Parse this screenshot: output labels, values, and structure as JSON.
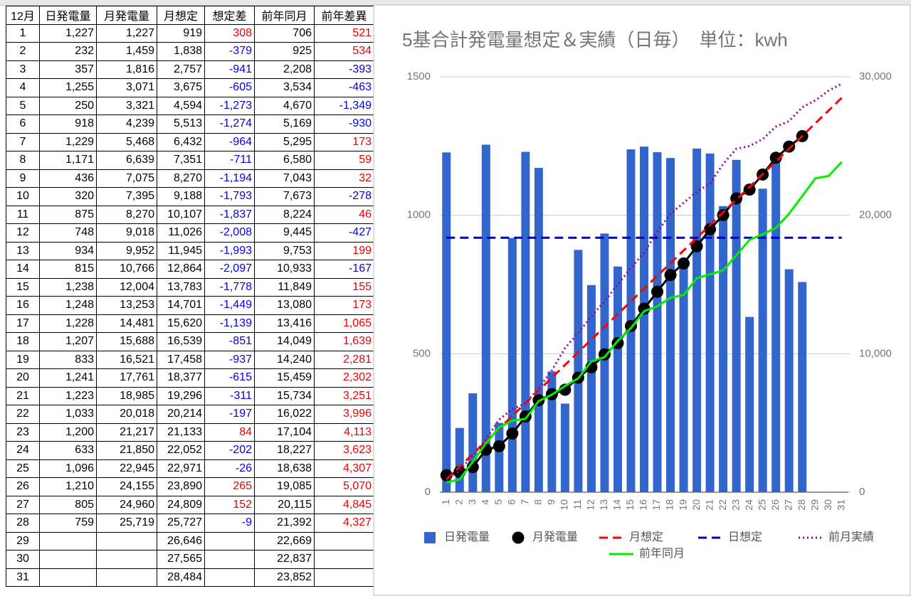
{
  "table": {
    "header": [
      "12月",
      "日発電量",
      "月発電量",
      "月想定",
      "想定差",
      "前年同月",
      "前年差異"
    ],
    "rows": [
      [
        "1",
        "1,227",
        "1,227",
        "919",
        "308",
        "706",
        "521"
      ],
      [
        "2",
        "232",
        "1,459",
        "1,838",
        "-379",
        "925",
        "534"
      ],
      [
        "3",
        "357",
        "1,816",
        "2,757",
        "-941",
        "2,208",
        "-393"
      ],
      [
        "4",
        "1,255",
        "3,071",
        "3,675",
        "-605",
        "3,534",
        "-463"
      ],
      [
        "5",
        "250",
        "3,321",
        "4,594",
        "-1,273",
        "4,670",
        "-1,349"
      ],
      [
        "6",
        "918",
        "4,239",
        "5,513",
        "-1,274",
        "5,169",
        "-930"
      ],
      [
        "7",
        "1,229",
        "5,468",
        "6,432",
        "-964",
        "5,295",
        "173"
      ],
      [
        "8",
        "1,171",
        "6,639",
        "7,351",
        "-711",
        "6,580",
        "59"
      ],
      [
        "9",
        "436",
        "7,075",
        "8,270",
        "-1,194",
        "7,043",
        "32"
      ],
      [
        "10",
        "320",
        "7,395",
        "9,188",
        "-1,793",
        "7,673",
        "-278"
      ],
      [
        "11",
        "875",
        "8,270",
        "10,107",
        "-1,837",
        "8,224",
        "46"
      ],
      [
        "12",
        "748",
        "9,018",
        "11,026",
        "-2,008",
        "9,445",
        "-427"
      ],
      [
        "13",
        "934",
        "9,952",
        "11,945",
        "-1,993",
        "9,753",
        "199"
      ],
      [
        "14",
        "815",
        "10,766",
        "12,864",
        "-2,097",
        "10,933",
        "-167"
      ],
      [
        "15",
        "1,238",
        "12,004",
        "13,783",
        "-1,778",
        "11,849",
        "155"
      ],
      [
        "16",
        "1,248",
        "13,253",
        "14,701",
        "-1,449",
        "13,080",
        "173"
      ],
      [
        "17",
        "1,228",
        "14,481",
        "15,620",
        "-1,139",
        "13,416",
        "1,065"
      ],
      [
        "18",
        "1,207",
        "15,688",
        "16,539",
        "-851",
        "14,049",
        "1,639"
      ],
      [
        "19",
        "833",
        "16,521",
        "17,458",
        "-937",
        "14,240",
        "2,281"
      ],
      [
        "20",
        "1,241",
        "17,761",
        "18,377",
        "-615",
        "15,459",
        "2,302"
      ],
      [
        "21",
        "1,223",
        "18,985",
        "19,296",
        "-311",
        "15,734",
        "3,251"
      ],
      [
        "22",
        "1,033",
        "20,018",
        "20,214",
        "-197",
        "16,022",
        "3,996"
      ],
      [
        "23",
        "1,200",
        "21,217",
        "21,133",
        "84",
        "17,104",
        "4,113"
      ],
      [
        "24",
        "633",
        "21,850",
        "22,052",
        "-202",
        "18,227",
        "3,623"
      ],
      [
        "25",
        "1,096",
        "22,945",
        "22,971",
        "-26",
        "18,638",
        "4,307"
      ],
      [
        "26",
        "1,210",
        "24,155",
        "23,890",
        "265",
        "19,085",
        "5,070"
      ],
      [
        "27",
        "805",
        "24,960",
        "24,809",
        "152",
        "20,115",
        "4,845"
      ],
      [
        "28",
        "759",
        "25,719",
        "25,727",
        "-9",
        "21,392",
        "4,327"
      ],
      [
        "29",
        null,
        null,
        "26,646",
        null,
        "22,669",
        null
      ],
      [
        "30",
        null,
        null,
        "27,565",
        null,
        "22,837",
        null
      ],
      [
        "31",
        null,
        null,
        "28,484",
        null,
        "23,852",
        null
      ]
    ]
  },
  "chart_data": {
    "type": "combo",
    "title": "5基合計発電量想定＆実績（日毎）　単位：kwh",
    "categories": [
      "1",
      "2",
      "3",
      "4",
      "5",
      "6",
      "7",
      "8",
      "9",
      "10",
      "11",
      "12",
      "13",
      "14",
      "15",
      "16",
      "17",
      "18",
      "19",
      "20",
      "21",
      "22",
      "23",
      "24",
      "25",
      "26",
      "27",
      "28",
      "29",
      "30",
      "31"
    ],
    "ylim": [
      0,
      1500
    ],
    "yticks": [
      0,
      500,
      1000,
      1500
    ],
    "y2lim": [
      0,
      30000
    ],
    "y2ticks": [
      {
        "value": 0,
        "label": "0"
      },
      {
        "value": 10000,
        "label": "10,000"
      },
      {
        "value": 20000,
        "label": "20,000"
      },
      {
        "value": 30000,
        "label": "30,000"
      }
    ],
    "grid": true,
    "series": [
      {
        "name": "日発電量",
        "color": "#3366cc",
        "style": "bar",
        "axis": "y",
        "values": [
          1227,
          232,
          357,
          1255,
          250,
          918,
          1229,
          1171,
          436,
          320,
          875,
          748,
          934,
          815,
          1238,
          1248,
          1228,
          1207,
          833,
          1241,
          1223,
          1033,
          1200,
          633,
          1096,
          1210,
          805,
          759,
          null,
          null,
          null
        ]
      },
      {
        "name": "月発電量",
        "color": "#000000",
        "style": "dots",
        "axis": "y2",
        "values": [
          1227,
          1459,
          1816,
          3071,
          3321,
          4239,
          5468,
          6639,
          7075,
          7395,
          8270,
          9018,
          9952,
          10766,
          12004,
          13253,
          14481,
          15688,
          16521,
          17761,
          18985,
          20018,
          21217,
          21850,
          22945,
          24155,
          24960,
          25719,
          null,
          null,
          null
        ]
      },
      {
        "name": "月想定",
        "color": "#ff0000",
        "style": "dash",
        "axis": "y2",
        "values": [
          919,
          1838,
          2757,
          3675,
          4594,
          5513,
          6432,
          7351,
          8270,
          9188,
          10107,
          11026,
          11945,
          12864,
          13783,
          14701,
          15620,
          16539,
          17458,
          18377,
          19296,
          20214,
          21133,
          22052,
          22971,
          23890,
          24809,
          25727,
          26646,
          27565,
          28484
        ]
      },
      {
        "name": "日想定",
        "color": "#0000cc",
        "style": "dash",
        "axis": "y",
        "values": [
          919,
          919,
          919,
          919,
          919,
          919,
          919,
          919,
          919,
          919,
          919,
          919,
          919,
          919,
          919,
          919,
          919,
          919,
          919,
          919,
          919,
          919,
          919,
          919,
          919,
          919,
          919,
          919,
          919,
          919,
          919
        ]
      },
      {
        "name": "前月実績",
        "color": "#990099",
        "style": "dot",
        "axis": "y2",
        "values": [
          870,
          1540,
          2670,
          3800,
          5240,
          6000,
          6400,
          7500,
          8800,
          10400,
          11500,
          12700,
          13800,
          15000,
          16200,
          17300,
          18800,
          20100,
          20900,
          21700,
          22300,
          23700,
          24800,
          25000,
          25500,
          26400,
          26800,
          27800,
          28300,
          29000,
          29500
        ]
      },
      {
        "name": "前年同月",
        "color": "#00ee00",
        "style": "solid",
        "axis": "y2",
        "values": [
          706,
          925,
          2208,
          3534,
          4670,
          5169,
          5295,
          6580,
          7043,
          7673,
          8224,
          9445,
          9753,
          10933,
          11849,
          13080,
          13416,
          14049,
          14240,
          15459,
          15734,
          16022,
          17104,
          18227,
          18638,
          19085,
          20115,
          21392,
          22669,
          22837,
          23852
        ]
      }
    ]
  }
}
